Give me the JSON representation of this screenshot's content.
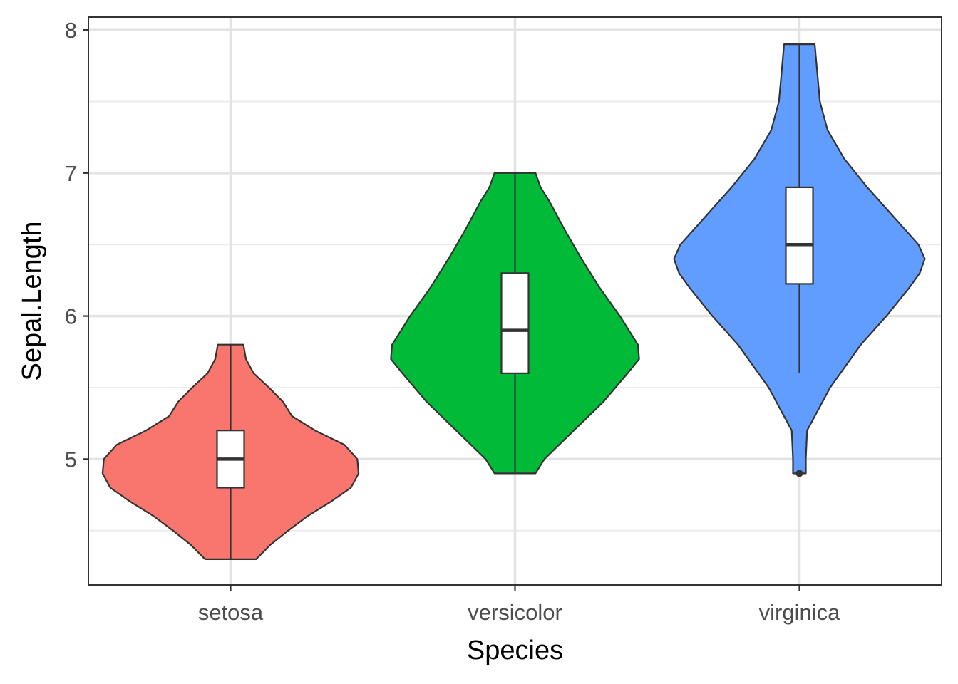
{
  "chart_data": {
    "type": "violin",
    "title": "",
    "xlabel": "Species",
    "ylabel": "Sepal.Length",
    "ylim": [
      4.12,
      8.09
    ],
    "y_ticks": [
      5,
      6,
      7,
      8
    ],
    "y_minor_ticks": [
      4.5,
      5.5,
      6.5,
      7.5
    ],
    "grid": true,
    "legend": "none",
    "categories": [
      "setosa",
      "versicolor",
      "virginica"
    ],
    "series": [
      {
        "category": "setosa",
        "color": "#F8766D",
        "min": 4.3,
        "q1": 4.8,
        "median": 5.0,
        "q3": 5.2,
        "max": 5.8,
        "outliers": [],
        "density": [
          [
            4.3,
            0.2
          ],
          [
            4.4,
            0.31
          ],
          [
            4.5,
            0.45
          ],
          [
            4.6,
            0.6
          ],
          [
            4.7,
            0.78
          ],
          [
            4.8,
            0.94
          ],
          [
            4.9,
            1.0
          ],
          [
            5.0,
            0.99
          ],
          [
            5.1,
            0.89
          ],
          [
            5.2,
            0.66
          ],
          [
            5.3,
            0.48
          ],
          [
            5.4,
            0.41
          ],
          [
            5.5,
            0.3
          ],
          [
            5.6,
            0.18
          ],
          [
            5.7,
            0.12
          ],
          [
            5.8,
            0.1
          ]
        ]
      },
      {
        "category": "versicolor",
        "color": "#00BA38",
        "min": 4.9,
        "q1": 5.6,
        "median": 5.9,
        "q3": 6.3,
        "max": 7.0,
        "outliers": [],
        "density": [
          [
            4.9,
            0.16
          ],
          [
            5.0,
            0.23
          ],
          [
            5.2,
            0.46
          ],
          [
            5.4,
            0.69
          ],
          [
            5.6,
            0.88
          ],
          [
            5.7,
            0.97
          ],
          [
            5.8,
            0.96
          ],
          [
            6.0,
            0.82
          ],
          [
            6.2,
            0.66
          ],
          [
            6.4,
            0.52
          ],
          [
            6.6,
            0.39
          ],
          [
            6.8,
            0.27
          ],
          [
            6.9,
            0.2
          ],
          [
            7.0,
            0.16
          ]
        ]
      },
      {
        "category": "virginica",
        "color": "#619CFF",
        "min": 5.6,
        "q1": 6.225,
        "median": 6.5,
        "q3": 6.9,
        "max": 7.9,
        "outliers": [
          4.9
        ],
        "density": [
          [
            4.9,
            0.05
          ],
          [
            5.0,
            0.05
          ],
          [
            5.2,
            0.06
          ],
          [
            5.5,
            0.24
          ],
          [
            5.8,
            0.48
          ],
          [
            6.0,
            0.68
          ],
          [
            6.2,
            0.86
          ],
          [
            6.3,
            0.94
          ],
          [
            6.4,
            0.98
          ],
          [
            6.5,
            0.93
          ],
          [
            6.7,
            0.73
          ],
          [
            6.9,
            0.53
          ],
          [
            7.1,
            0.35
          ],
          [
            7.3,
            0.22
          ],
          [
            7.5,
            0.16
          ],
          [
            7.7,
            0.14
          ],
          [
            7.9,
            0.12
          ]
        ]
      }
    ]
  }
}
